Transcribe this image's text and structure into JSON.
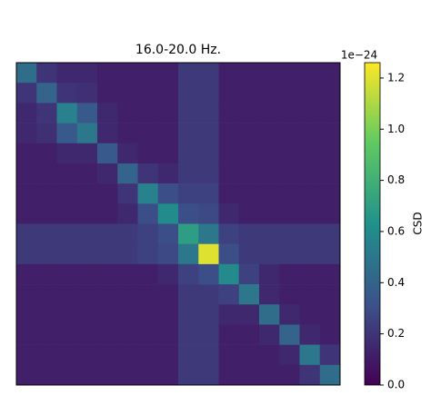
{
  "chart_data": {
    "type": "heatmap",
    "title": "16.0-20.0 Hz.",
    "colormap": "viridis",
    "colorbar_label": "CSD",
    "colorbar_offset": "1e−24",
    "vlim": [
      0,
      1.26
    ],
    "cticks": [
      {
        "value": 0,
        "label": "0.0"
      },
      {
        "value": 0.2,
        "label": "0.2"
      },
      {
        "value": 0.4,
        "label": "0.4"
      },
      {
        "value": 0.6,
        "label": "0.6"
      },
      {
        "value": 0.8,
        "label": "0.8"
      },
      {
        "value": 1,
        "label": "1.0"
      },
      {
        "value": 1.2,
        "label": "1.2"
      }
    ],
    "values": [
      [
        0.45,
        0.2,
        0.15,
        0.15,
        0.12,
        0.12,
        0.12,
        0.12,
        0.22,
        0.22,
        0.12,
        0.12,
        0.12,
        0.12,
        0.12,
        0.12
      ],
      [
        0.2,
        0.4,
        0.2,
        0.18,
        0.12,
        0.12,
        0.12,
        0.12,
        0.22,
        0.22,
        0.12,
        0.12,
        0.12,
        0.12,
        0.12,
        0.12
      ],
      [
        0.15,
        0.2,
        0.55,
        0.35,
        0.15,
        0.12,
        0.12,
        0.12,
        0.22,
        0.22,
        0.12,
        0.12,
        0.12,
        0.12,
        0.12,
        0.12
      ],
      [
        0.15,
        0.18,
        0.35,
        0.5,
        0.15,
        0.12,
        0.12,
        0.12,
        0.22,
        0.22,
        0.12,
        0.12,
        0.12,
        0.12,
        0.12,
        0.12
      ],
      [
        0.12,
        0.12,
        0.15,
        0.15,
        0.35,
        0.15,
        0.12,
        0.12,
        0.22,
        0.22,
        0.12,
        0.12,
        0.12,
        0.12,
        0.12,
        0.12
      ],
      [
        0.12,
        0.12,
        0.12,
        0.12,
        0.15,
        0.4,
        0.2,
        0.15,
        0.22,
        0.22,
        0.12,
        0.12,
        0.12,
        0.12,
        0.12,
        0.12
      ],
      [
        0.12,
        0.12,
        0.12,
        0.12,
        0.12,
        0.2,
        0.55,
        0.3,
        0.25,
        0.25,
        0.12,
        0.12,
        0.12,
        0.12,
        0.12,
        0.12
      ],
      [
        0.12,
        0.12,
        0.12,
        0.12,
        0.12,
        0.15,
        0.3,
        0.6,
        0.3,
        0.28,
        0.15,
        0.12,
        0.12,
        0.12,
        0.12,
        0.12
      ],
      [
        0.22,
        0.22,
        0.22,
        0.22,
        0.22,
        0.22,
        0.25,
        0.3,
        0.7,
        0.5,
        0.25,
        0.22,
        0.22,
        0.22,
        0.22,
        0.22
      ],
      [
        0.22,
        0.22,
        0.22,
        0.22,
        0.22,
        0.22,
        0.25,
        0.28,
        0.5,
        1.2,
        0.3,
        0.22,
        0.22,
        0.22,
        0.22,
        0.22
      ],
      [
        0.12,
        0.12,
        0.12,
        0.12,
        0.12,
        0.12,
        0.12,
        0.15,
        0.25,
        0.3,
        0.6,
        0.25,
        0.15,
        0.12,
        0.12,
        0.12
      ],
      [
        0.12,
        0.12,
        0.12,
        0.12,
        0.12,
        0.12,
        0.12,
        0.12,
        0.22,
        0.22,
        0.25,
        0.5,
        0.15,
        0.12,
        0.12,
        0.12
      ],
      [
        0.12,
        0.12,
        0.12,
        0.12,
        0.12,
        0.12,
        0.12,
        0.12,
        0.22,
        0.22,
        0.15,
        0.15,
        0.45,
        0.15,
        0.12,
        0.12
      ],
      [
        0.12,
        0.12,
        0.12,
        0.12,
        0.12,
        0.12,
        0.12,
        0.12,
        0.22,
        0.22,
        0.12,
        0.12,
        0.15,
        0.4,
        0.15,
        0.12
      ],
      [
        0.12,
        0.12,
        0.12,
        0.12,
        0.12,
        0.12,
        0.12,
        0.12,
        0.22,
        0.22,
        0.12,
        0.12,
        0.12,
        0.15,
        0.5,
        0.2
      ],
      [
        0.12,
        0.12,
        0.12,
        0.12,
        0.12,
        0.12,
        0.12,
        0.12,
        0.22,
        0.22,
        0.12,
        0.12,
        0.12,
        0.12,
        0.2,
        0.45
      ]
    ]
  }
}
